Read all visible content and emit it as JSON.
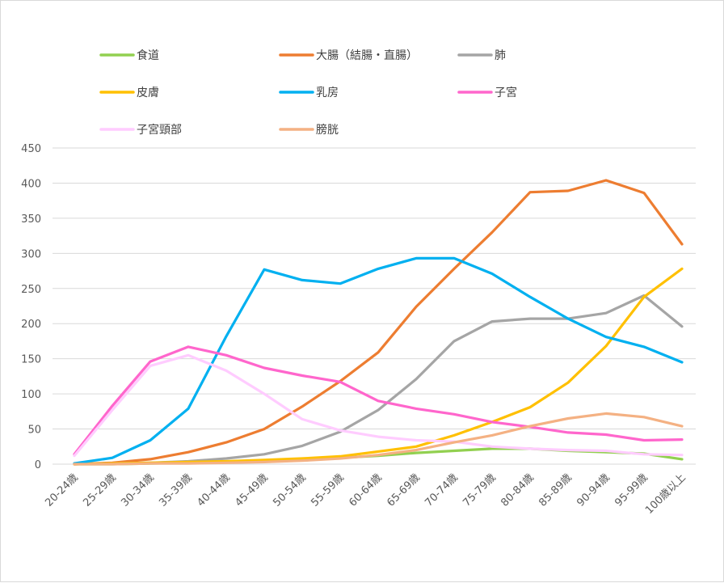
{
  "chart_data": {
    "type": "line",
    "categories": [
      "20-24歳",
      "25-29歳",
      "30-34歳",
      "35-39歳",
      "40-44歳",
      "45-49歳",
      "50-54歳",
      "55-59歳",
      "60-64歳",
      "65-69歳",
      "70-74歳",
      "75-79歳",
      "80-84歳",
      "85-89歳",
      "90-94歳",
      "95-99歳",
      "100歳以上"
    ],
    "ylim": [
      0,
      450
    ],
    "yticks": [
      0,
      50,
      100,
      150,
      200,
      250,
      300,
      350,
      400,
      450
    ],
    "grid": true,
    "legend_position": "top",
    "series": [
      {
        "name": "食道",
        "color": "#92d050",
        "values": [
          0,
          0,
          1,
          2,
          3,
          4,
          6,
          9,
          12,
          16,
          19,
          22,
          22,
          19,
          17,
          15,
          7
        ]
      },
      {
        "name": "大腸（結腸・直腸）",
        "color": "#ed7d31",
        "values": [
          0,
          2,
          7,
          17,
          31,
          50,
          82,
          118,
          159,
          224,
          278,
          330,
          387,
          389,
          404,
          386,
          313
        ]
      },
      {
        "name": "肺",
        "color": "#a5a5a5",
        "values": [
          0,
          1,
          2,
          4,
          8,
          14,
          26,
          46,
          77,
          121,
          175,
          203,
          207,
          207,
          215,
          240,
          196
        ]
      },
      {
        "name": "皮膚",
        "color": "#ffc000",
        "values": [
          0,
          1,
          2,
          3,
          4,
          6,
          8,
          11,
          18,
          25,
          41,
          60,
          81,
          116,
          168,
          238,
          278
        ]
      },
      {
        "name": "乳房",
        "color": "#00b0f0",
        "values": [
          1,
          9,
          34,
          79,
          182,
          277,
          262,
          257,
          278,
          293,
          293,
          271,
          238,
          207,
          181,
          167,
          145
        ]
      },
      {
        "name": "子宮",
        "color": "#ff66cc",
        "values": [
          14,
          83,
          146,
          167,
          155,
          137,
          126,
          117,
          90,
          79,
          71,
          60,
          53,
          45,
          42,
          34,
          35
        ]
      },
      {
        "name": "子宮頸部",
        "color": "#ffccff",
        "values": [
          12,
          77,
          140,
          155,
          133,
          100,
          64,
          48,
          39,
          34,
          32,
          25,
          22,
          20,
          19,
          14,
          13
        ]
      },
      {
        "name": "膀胱",
        "color": "#f4b183",
        "values": [
          0,
          0,
          1,
          1,
          2,
          3,
          5,
          8,
          13,
          20,
          31,
          41,
          54,
          65,
          72,
          67,
          54
        ]
      }
    ]
  }
}
